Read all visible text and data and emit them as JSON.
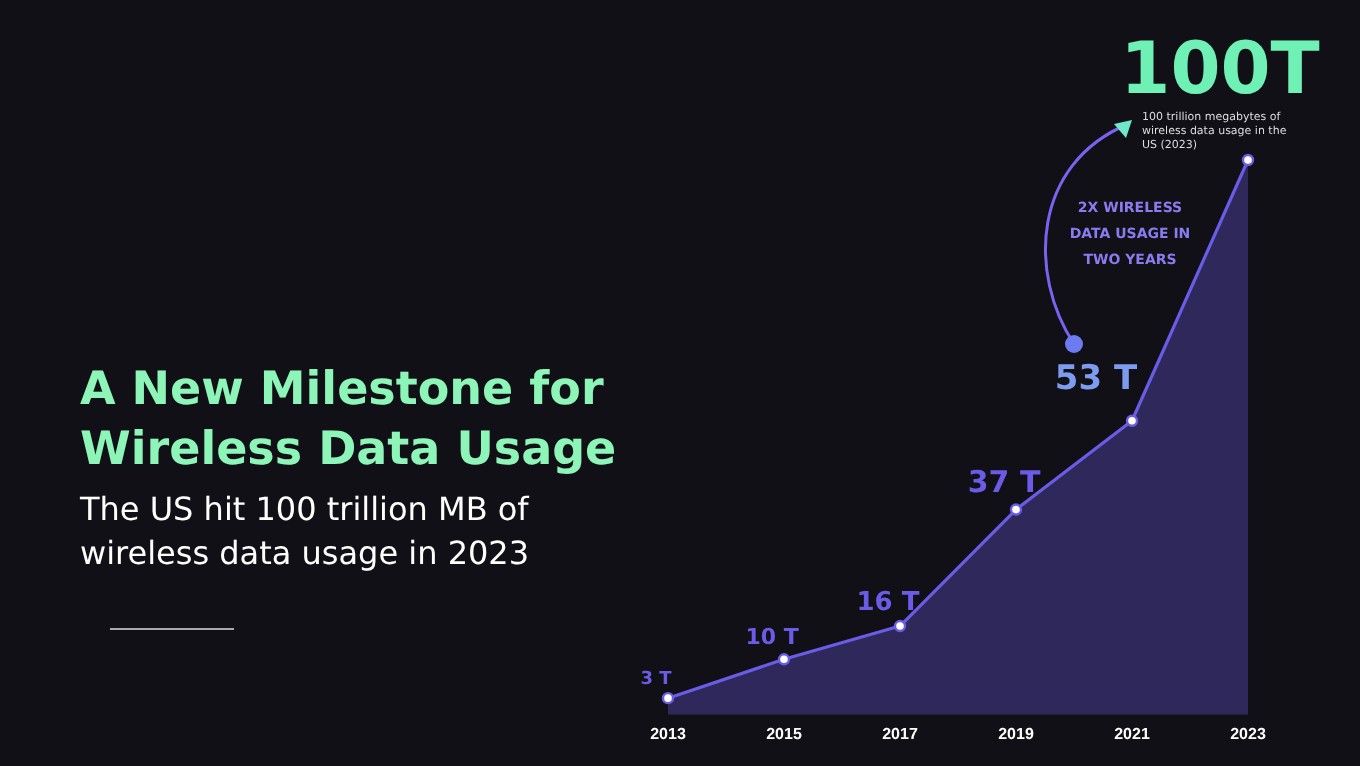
{
  "chart_data": {
    "type": "area",
    "title": "A New Milestone for Wireless Data Usage",
    "subtitle": "The US hit 100 trillion MB of wireless data usage in 2023",
    "annotations": [
      "100 trillion megabytes of wireless data usage in the US (2023)",
      "2X WIRELESS DATA USAGE IN TWO YEARS"
    ],
    "categories": [
      "2013",
      "2015",
      "2017",
      "2019",
      "2021",
      "2023"
    ],
    "series": [
      {
        "color": "#6b5be6",
        "values": [
          3,
          10,
          16,
          37,
          53,
          100
        ],
        "value_labels": [
          "3 T",
          "10 T",
          "16 T",
          "37 T",
          "53 T",
          "100T"
        ]
      }
    ],
    "tick_labels": "x",
    "marker": "circle",
    "line_style": "solid"
  }
}
